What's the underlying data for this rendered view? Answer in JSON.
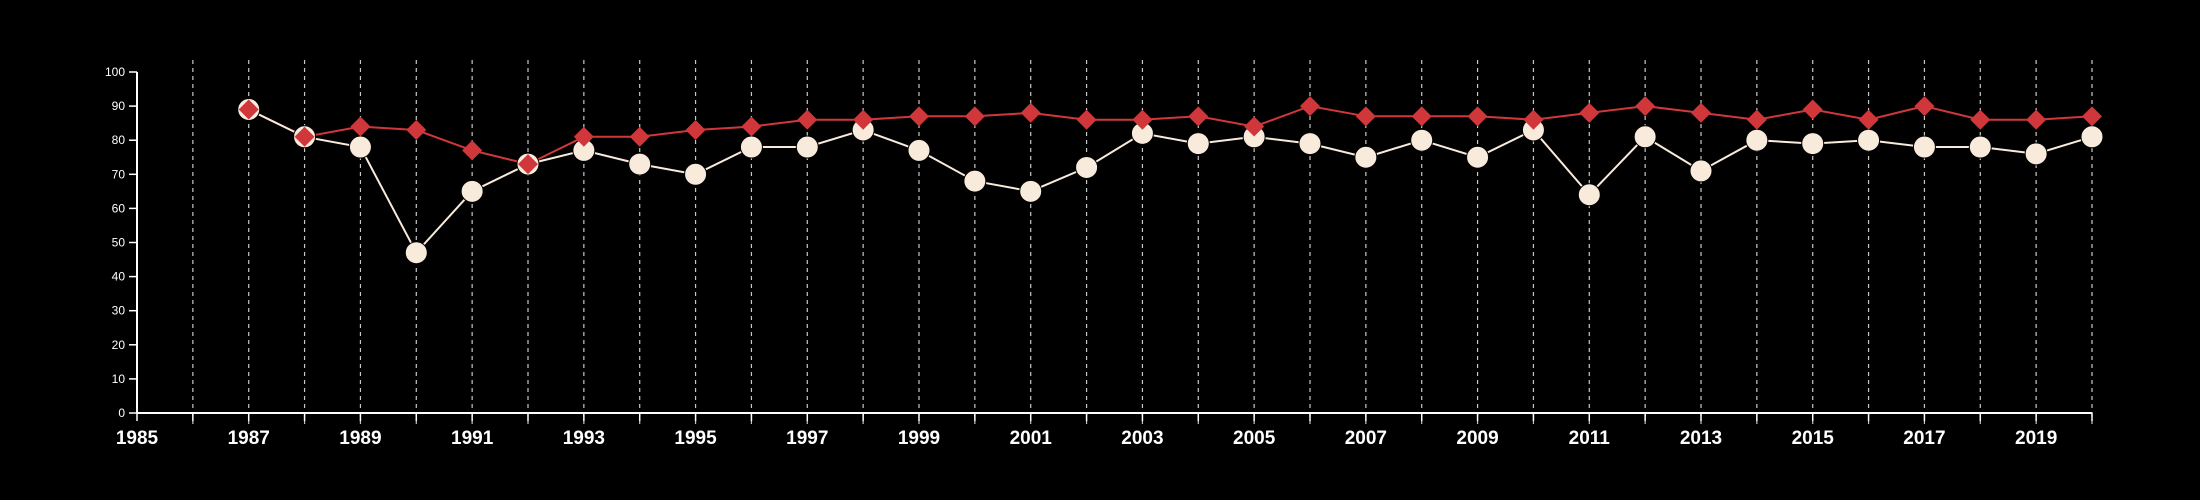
{
  "chart_data": {
    "type": "line",
    "title": "",
    "xlabel": "",
    "ylabel": "",
    "xlim": [
      1985,
      2020
    ],
    "ylim": [
      0,
      100
    ],
    "x_tick_labels": [
      "1985",
      "1987",
      "1989",
      "1991",
      "1993",
      "1995",
      "1997",
      "1999",
      "2001",
      "2003",
      "2005",
      "2007",
      "2009",
      "2011",
      "2013",
      "2015",
      "2017",
      "2019"
    ],
    "y_tick_labels": [
      "0",
      "10",
      "20",
      "30",
      "40",
      "50",
      "60",
      "70",
      "80",
      "90",
      "100"
    ],
    "vertical_gridlines": "dashed, every year",
    "series": [
      {
        "color": "#d0373b",
        "marker": "diamond",
        "x": [
          1987,
          1988,
          1989,
          1990,
          1991,
          1992,
          1993,
          1994,
          1995,
          1996,
          1997,
          1998,
          1999,
          2000,
          2001,
          2002,
          2003,
          2004,
          2005,
          2006,
          2007,
          2008,
          2009,
          2010,
          2011,
          2012,
          2013,
          2014,
          2015,
          2016,
          2017,
          2018,
          2019,
          2020
        ],
        "values": [
          89,
          81,
          84,
          83,
          77,
          73,
          81,
          81,
          83,
          84,
          86,
          86,
          87,
          87,
          88,
          86,
          86,
          87,
          84,
          90,
          87,
          87,
          87,
          86,
          88,
          90,
          88,
          86,
          89,
          86,
          90,
          86,
          86,
          87
        ]
      },
      {
        "color": "#f8ebdc",
        "marker": "circle",
        "x": [
          1987,
          1988,
          1989,
          1990,
          1991,
          1992,
          1993,
          1994,
          1995,
          1996,
          1997,
          1998,
          1999,
          2000,
          2001,
          2002,
          2003,
          2004,
          2005,
          2006,
          2007,
          2008,
          2009,
          2010,
          2011,
          2012,
          2013,
          2014,
          2015,
          2016,
          2017,
          2018,
          2019,
          2020
        ],
        "values": [
          89,
          81,
          78,
          47,
          65,
          73,
          77,
          73,
          70,
          78,
          78,
          83,
          77,
          68,
          65,
          72,
          82,
          79,
          81,
          79,
          75,
          80,
          75,
          83,
          64,
          81,
          71,
          80,
          79,
          80,
          78,
          78,
          76,
          81
        ]
      }
    ]
  }
}
